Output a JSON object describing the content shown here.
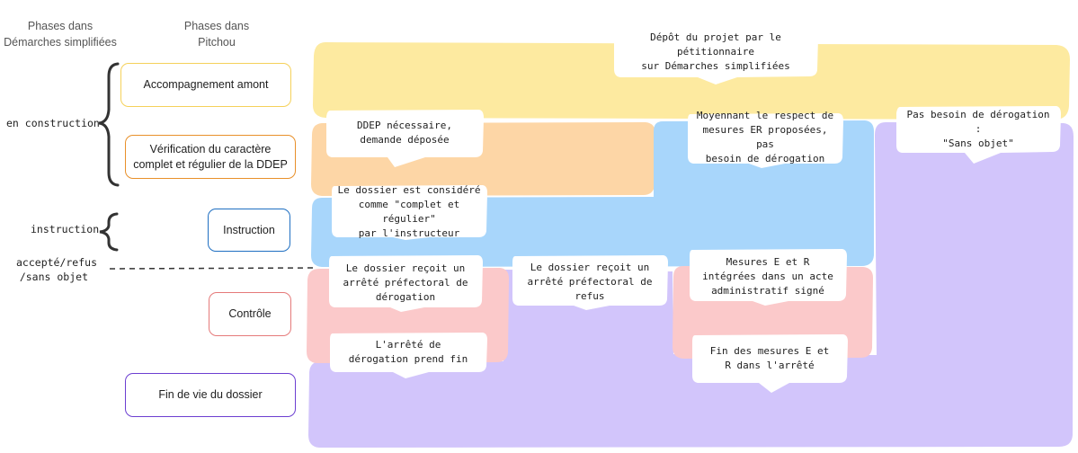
{
  "headers": {
    "demarches": "Phases dans\nDémarches simplifiées",
    "pitchou": "Phases dans\nPitchou"
  },
  "side_labels": {
    "en_construction": "en construction",
    "instruction": "instruction",
    "accepte": "accepté/refus\n/sans objet"
  },
  "phases": [
    {
      "label": "Accompagnement amont",
      "color": "#f5d15a"
    },
    {
      "label": "Vérification du caractère\ncomplet et régulier de la DDEP",
      "color": "#e8902a"
    },
    {
      "label": "Instruction",
      "color": "#1f6fc2"
    },
    {
      "label": "Contrôle",
      "color": "#e57a7a"
    },
    {
      "label": "Fin de vie du dossier",
      "color": "#6c3fd1"
    }
  ],
  "regions": {
    "yellow": "#fdeaa0",
    "orange": "#fdd6a6",
    "blue": "#a8d6fb",
    "purple": "#d2c5fb",
    "pink": "#fbc9ca"
  },
  "callouts": {
    "depot": "Dépôt du projet par le pétitionnaire\nsur Démarches simplifiées",
    "ddep": "DDEP nécessaire,\ndemande déposée",
    "moyennant": "Moyennant le respect de\nmesures ER proposées, pas\nbesoin de dérogation",
    "pas_besoin": "Pas besoin de dérogation :\n\"Sans objet\"",
    "complet": "Le dossier est considéré\ncomme \"complet et régulier\"\npar l'instructeur",
    "arrete_derog": "Le dossier reçoit un\narrêté préfectoral de\ndérogation",
    "arrete_refus": "Le dossier reçoit un\narrêté préfectoral de\nrefus",
    "mesures_integrees": "Mesures E et R\nintégrées dans un acte\nadministratif signé",
    "fin_arrete": "L'arrêté de\ndérogation prend fin",
    "fin_mesures": "Fin des mesures E et\nR dans l'arrêté"
  }
}
